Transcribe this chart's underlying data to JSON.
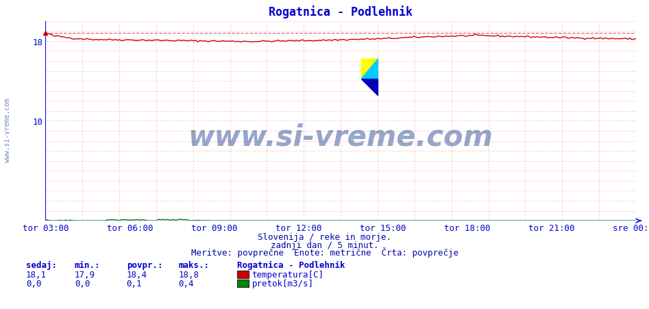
{
  "title": "Rogatnica - Podlehnik",
  "title_color": "#0000cc",
  "bg_color": "#ffffff",
  "plot_bg_color": "#ffffff",
  "grid_color": "#ffaaaa",
  "ylim": [
    0,
    20
  ],
  "yticks_major": [
    10,
    18
  ],
  "yticks_all": [
    0,
    1,
    2,
    3,
    4,
    5,
    6,
    7,
    8,
    9,
    10,
    11,
    12,
    13,
    14,
    15,
    16,
    17,
    18,
    19,
    20
  ],
  "xtick_labels": [
    "tor 03:00",
    "tor 06:00",
    "tor 09:00",
    "tor 12:00",
    "tor 15:00",
    "tor 18:00",
    "tor 21:00",
    "sre 00:00"
  ],
  "tick_color": "#0000cc",
  "temp_color": "#cc0000",
  "temp_max_color": "#dd6666",
  "flow_color": "#008800",
  "border_color": "#0000dd",
  "temp_min": 17.9,
  "temp_max": 18.8,
  "temp_avg": 18.4,
  "temp_curr": 18.1,
  "flow_min": 0.0,
  "flow_max": 0.4,
  "flow_avg": 0.1,
  "flow_curr": 0.0,
  "watermark": "www.si-vreme.com",
  "watermark_color": "#1a3a8a",
  "subtitle1": "Slovenija / reke in morje.",
  "subtitle2": "zadnji dan / 5 minut.",
  "subtitle3": "Meritve: povprečne  Enote: metrične  Črta: povprečje",
  "subtitle_color": "#0000aa",
  "legend_title": "Rogatnica - Podlehnik",
  "legend_color": "#0000cc",
  "label_temp": "temperatura[C]",
  "label_flow": "pretok[m3/s]",
  "n_points": 288,
  "left_border_color": "#0000ff",
  "side_watermark_color": "#4466aa"
}
